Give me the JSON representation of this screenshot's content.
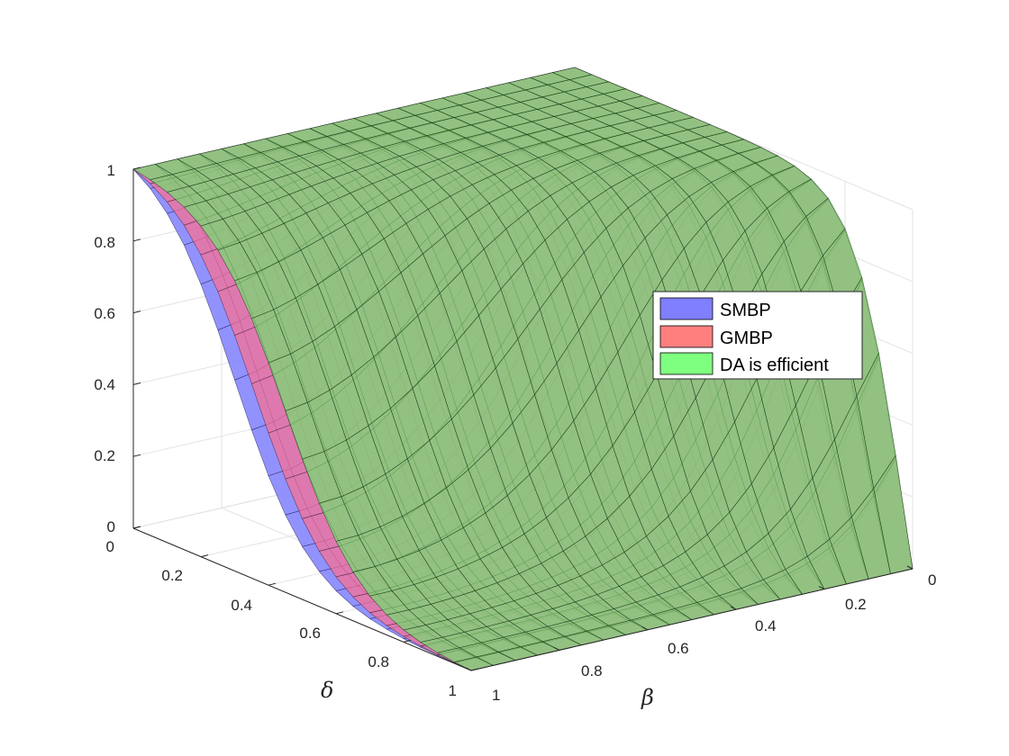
{
  "chart_data": {
    "type": "surface",
    "title": "",
    "xlabel": "β",
    "ylabel": "δ",
    "zlabel": "",
    "x_ticks": [
      "0",
      "0.2",
      "0.4",
      "0.6",
      "0.8",
      "1"
    ],
    "y_ticks": [
      "0",
      "0.2",
      "0.4",
      "0.6",
      "0.8",
      "1"
    ],
    "z_ticks": [
      "0",
      "0.2",
      "0.4",
      "0.6",
      "0.8",
      "1"
    ],
    "xlim": [
      0,
      1
    ],
    "ylim": [
      0,
      1
    ],
    "zlim": [
      0,
      1
    ],
    "grid": true,
    "legend_position": "right",
    "description_grid": {
      "beta": [
        0,
        0.05,
        0.1,
        0.15,
        0.2,
        0.25,
        0.3,
        0.35,
        0.4,
        0.45,
        0.5,
        0.55,
        0.6,
        0.65,
        0.7,
        0.75,
        0.8,
        0.85,
        0.9,
        0.95,
        1
      ],
      "delta": [
        0,
        0.05,
        0.1,
        0.15,
        0.2,
        0.25,
        0.3,
        0.35,
        0.4,
        0.45,
        0.5,
        0.55,
        0.6,
        0.65,
        0.7,
        0.75,
        0.8,
        0.85,
        0.9,
        0.95,
        1
      ]
    },
    "series": [
      {
        "name": "SMBP",
        "color": "#7f7fff",
        "transition_delta_at_beta1": 0.3,
        "model": "z drops from 1 to 0 as delta exceeds a threshold increasing with (1-beta)"
      },
      {
        "name": "GMBP",
        "color": "#ff7f7f",
        "transition_delta_at_beta1": 0.36
      },
      {
        "name": "DA is efficient",
        "color": "#7fff7f",
        "transition_delta_at_beta1": 0.45
      }
    ]
  },
  "legend": {
    "items": [
      {
        "label": "SMBP",
        "color": "#7f7fff"
      },
      {
        "label": "GMBP",
        "color": "#ff7f7f"
      },
      {
        "label": "DA is efficient",
        "color": "#7fff7f"
      }
    ]
  }
}
